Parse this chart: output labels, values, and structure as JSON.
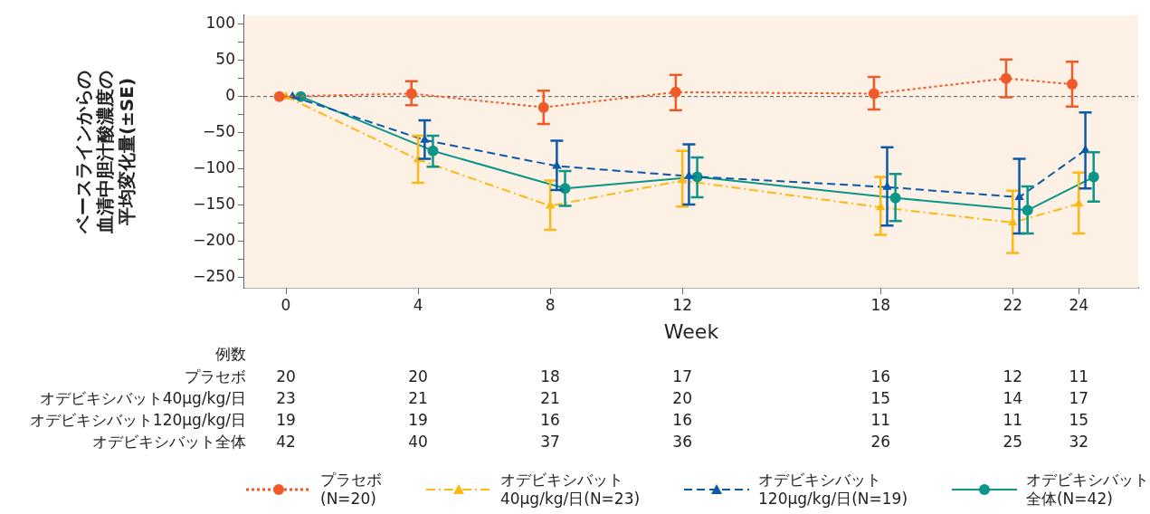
{
  "chart_data": {
    "type": "line",
    "xlabel": "Week",
    "ylabel": "ベースラインからの血清中胆汁酸濃度の平均変化量(±SE)",
    "xlim": [
      -1.26,
      25.8
    ],
    "xticks": [
      0,
      4,
      8,
      12,
      18,
      22,
      24
    ],
    "ylim": [
      -264,
      112
    ],
    "yticks": [
      {
        "value": -250,
        "label": "−250"
      },
      {
        "value": -225,
        "label": null
      },
      {
        "value": -200,
        "label": "−200"
      },
      {
        "value": -175,
        "label": null
      },
      {
        "value": -150,
        "label": "−150"
      },
      {
        "value": -125,
        "label": null
      },
      {
        "value": -100,
        "label": "−100"
      },
      {
        "value": -75,
        "label": null
      },
      {
        "value": -50,
        "label": "−50"
      },
      {
        "value": -25,
        "label": null
      },
      0,
      {
        "value": 25,
        "label": null
      },
      50,
      {
        "value": 75,
        "label": null
      },
      100
    ],
    "legend": "bottom",
    "ref_lines": [
      {
        "axis": "y",
        "value": 0,
        "color": "#555555",
        "line_style": "dashed"
      }
    ],
    "series": [
      {
        "name": "プラセボ(N=20)",
        "x": [
          -0.2,
          3.8,
          7.8,
          11.8,
          17.8,
          21.8,
          23.8
        ],
        "color": "#f05a28",
        "marker": "circle",
        "line_style": "dotted",
        "values": [
          0,
          4,
          -15,
          6,
          4,
          25,
          17
        ],
        "errors": [
          null,
          [
            -12,
            21
          ],
          [
            -38,
            8
          ],
          [
            -19,
            30
          ],
          [
            -18,
            27
          ],
          [
            -1,
            51
          ],
          [
            -14,
            48
          ]
        ]
      },
      {
        "name": "オデビキシバット40μg/kg/日(N=23)",
        "x": [
          0,
          4,
          8,
          12,
          18,
          22,
          24
        ],
        "color": "#fbb817",
        "marker": "triangle",
        "line_style": "dashdot",
        "values": [
          0,
          -87,
          -151,
          -116,
          -153,
          -174,
          -148
        ],
        "errors": [
          null,
          [
            -119,
            -54
          ],
          [
            -184,
            -116
          ],
          [
            -152,
            -75
          ],
          [
            -191,
            -111
          ],
          [
            -216,
            -130
          ],
          [
            -189,
            -105
          ]
        ]
      },
      {
        "name": "オデビキシバット120μg/kg/日(N=19)",
        "x": [
          0.2,
          4.2,
          8.2,
          12.2,
          18.2,
          22.2,
          24.2
        ],
        "color": "#0a5aa8",
        "marker": "triangle",
        "line_style": "dashed",
        "values": [
          0,
          -60,
          -96,
          -110,
          -125,
          -139,
          -74
        ],
        "errors": [
          null,
          [
            -86,
            -33
          ],
          [
            -129,
            -61
          ],
          [
            -149,
            -66
          ],
          [
            -178,
            -70
          ],
          [
            -189,
            -86
          ],
          [
            -127,
            -22
          ]
        ]
      },
      {
        "name": "オデビキシバット全体(N=42)",
        "x": [
          0.45,
          4.45,
          8.45,
          12.45,
          18.45,
          22.45,
          24.45
        ],
        "color": "#0a9688",
        "marker": "circle",
        "line_style": "solid",
        "values": [
          0,
          -75,
          -127,
          -111,
          -140,
          -157,
          -111
        ],
        "errors": [
          null,
          [
            -97,
            -54
          ],
          [
            -151,
            -103
          ],
          [
            -139,
            -84
          ],
          [
            -172,
            -107
          ],
          [
            -189,
            -124
          ],
          [
            -145,
            -77
          ]
        ]
      }
    ],
    "annotations": [
      "例数",
      "プラセボ",
      "オデビキシバット40μg/kg/日",
      "オデビキシバット120μg/kg/日",
      "オデビキシバット全体",
      "20",
      "20",
      "18",
      "17",
      "16",
      "12",
      "11",
      "23",
      "21",
      "21",
      "20",
      "15",
      "14",
      "17",
      "19",
      "19",
      "16",
      "16",
      "11",
      "11",
      "15",
      "42",
      "40",
      "37",
      "36",
      "26",
      "25",
      "32"
    ]
  }
}
